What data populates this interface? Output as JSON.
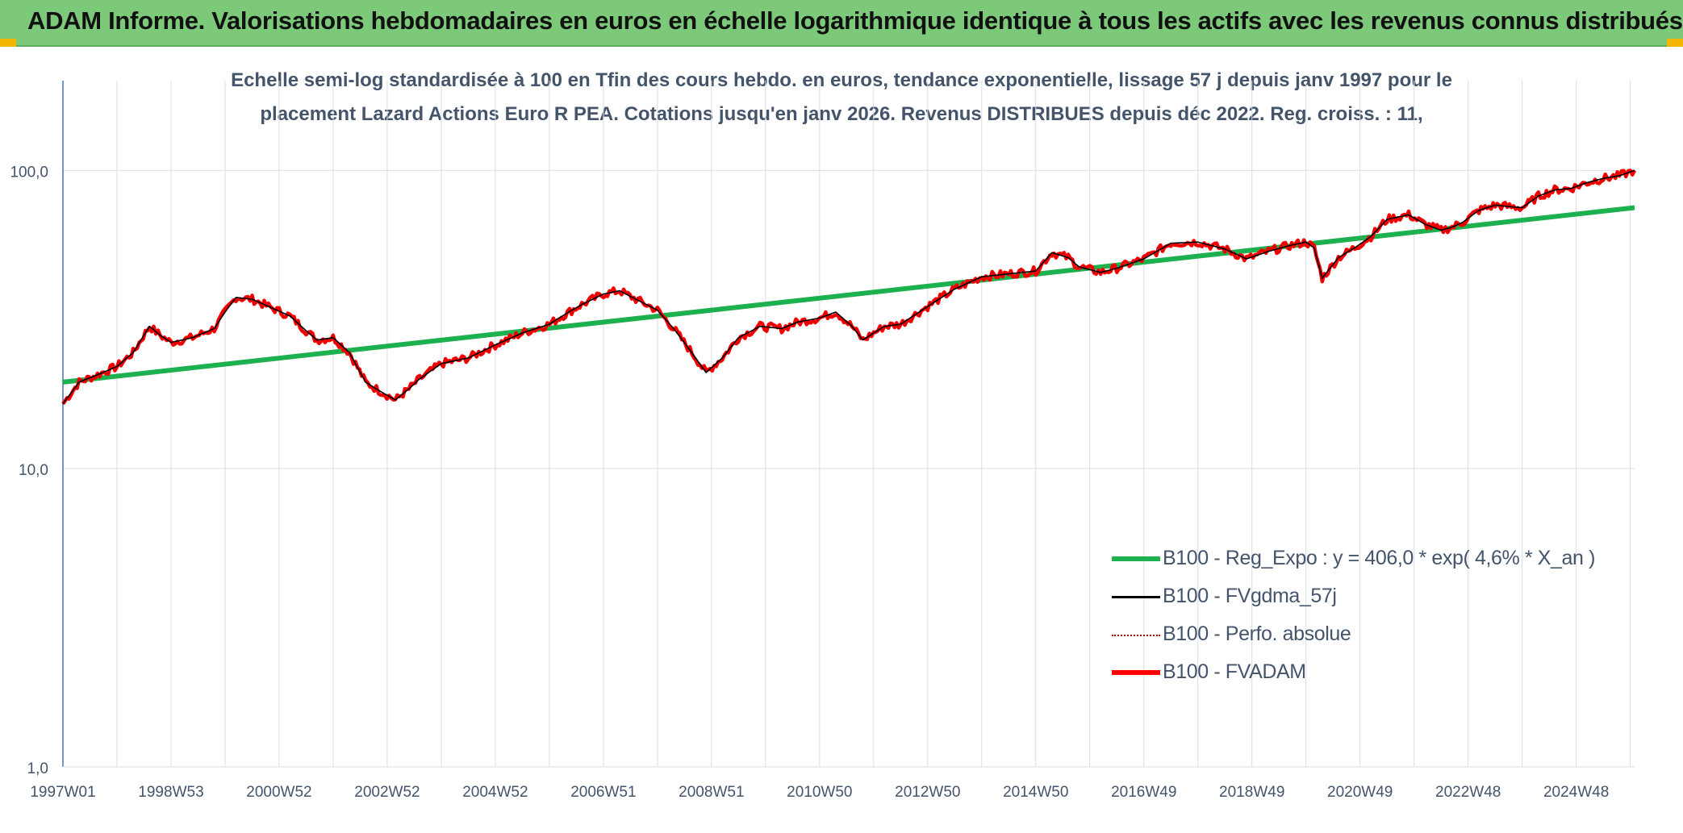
{
  "header": {
    "banner_title": "ADAM Informe. Valorisations hebdomadaires en euros en échelle logarithmique identique à tous les actifs avec les revenus connus distribués"
  },
  "colors": {
    "banner_bg": "#7dc97a",
    "regression": "#1db04f",
    "smoothed": "#000000",
    "perfo": "#c00000",
    "fvadam": "#ff0000",
    "axis_text": "#44546a"
  },
  "chart_data": {
    "type": "line",
    "subtitle_line1": "Echelle semi-log standardisée à 100 en Tfin des cours hebdo. en euros, tendance exponentielle, lissage 57 j depuis janv 1997 pour le",
    "subtitle_line2": "placement Lazard Actions Euro R PEA. Cotations jusqu'en janv 2026. Revenus DISTRIBUES depuis déc 2022. Reg. croiss. : 11,",
    "y_scale": "log",
    "ylim": [
      1,
      200
    ],
    "y_ticks": [
      {
        "value": 1,
        "label": "1,0"
      },
      {
        "value": 10,
        "label": "10,0"
      },
      {
        "value": 100,
        "label": "100,0"
      }
    ],
    "xlim": [
      1997.0,
      2026.08
    ],
    "x_ticks": [
      {
        "value": 1997.0,
        "label": "1997W01"
      },
      {
        "value": 1999.0,
        "label": "1998W53"
      },
      {
        "value": 2001.0,
        "label": "2000W52"
      },
      {
        "value": 2003.0,
        "label": "2002W52"
      },
      {
        "value": 2005.0,
        "label": "2004W52"
      },
      {
        "value": 2007.0,
        "label": "2006W51"
      },
      {
        "value": 2009.0,
        "label": "2008W51"
      },
      {
        "value": 2011.0,
        "label": "2010W50"
      },
      {
        "value": 2013.0,
        "label": "2012W50"
      },
      {
        "value": 2015.0,
        "label": "2014W50"
      },
      {
        "value": 2017.0,
        "label": "2016W49"
      },
      {
        "value": 2019.0,
        "label": "2018W49"
      },
      {
        "value": 2021.0,
        "label": "2020W49"
      },
      {
        "value": 2023.0,
        "label": "2022W48"
      },
      {
        "value": 2025.0,
        "label": "2024W48"
      }
    ],
    "grid": "vertical and horizontal",
    "legend_position": "lower-right",
    "series": [
      {
        "name": "B100 - Reg_Expo : y = 406,0 * exp( 4,6% *  X_an )",
        "role": "regression",
        "x": [
          1997.0,
          2026.08
        ],
        "y": [
          19.5,
          75.0
        ]
      },
      {
        "name": "B100 - FVgdma_57j",
        "role": "smoothed"
      },
      {
        "name": "B100 - Perfo. absolue",
        "role": "perfo"
      },
      {
        "name": "B100 - FVADAM",
        "role": "fvadam",
        "x": [
          1997.0,
          1997.3,
          1997.6,
          1998.0,
          1998.3,
          1998.6,
          1998.8,
          1999.0,
          1999.4,
          1999.8,
          2000.0,
          2000.2,
          2000.5,
          2000.8,
          2001.2,
          2001.5,
          2001.7,
          2002.0,
          2002.3,
          2002.6,
          2002.8,
          2003.15,
          2003.4,
          2003.6,
          2004.0,
          2004.5,
          2005.0,
          2005.5,
          2006.0,
          2006.3,
          2006.6,
          2007.0,
          2007.3,
          2007.6,
          2008.0,
          2008.3,
          2008.6,
          2008.9,
          2009.2,
          2009.5,
          2009.9,
          2010.3,
          2010.6,
          2011.0,
          2011.3,
          2011.6,
          2011.8,
          2012.0,
          2012.2,
          2012.5,
          2013.0,
          2013.5,
          2014.0,
          2014.5,
          2015.0,
          2015.3,
          2015.6,
          2015.8,
          2016.2,
          2016.5,
          2017.0,
          2017.5,
          2018.0,
          2018.5,
          2018.9,
          2019.3,
          2019.7,
          2020.0,
          2020.15,
          2020.3,
          2020.6,
          2020.9,
          2021.2,
          2021.5,
          2021.9,
          2022.2,
          2022.5,
          2022.7,
          2022.9,
          2023.2,
          2023.5,
          2023.8,
          2024.0,
          2024.3,
          2024.6,
          2024.9,
          2025.2,
          2025.5,
          2025.8,
          2026.08
        ],
        "y": [
          16.5,
          19.5,
          20.5,
          22.0,
          24.5,
          30.0,
          28.0,
          26.5,
          27.5,
          29.5,
          33.5,
          37.5,
          37.0,
          35.0,
          32.5,
          29.0,
          27.0,
          27.5,
          24.5,
          19.5,
          18.5,
          17.0,
          18.5,
          20.0,
          22.5,
          23.5,
          26.0,
          28.5,
          30.5,
          33.0,
          35.5,
          38.5,
          39.5,
          37.0,
          34.0,
          29.5,
          25.0,
          21.0,
          23.5,
          27.5,
          30.0,
          29.5,
          31.0,
          32.0,
          33.5,
          30.0,
          27.0,
          28.5,
          30.0,
          30.5,
          35.0,
          40.0,
          44.0,
          45.0,
          46.0,
          53.0,
          51.0,
          47.5,
          45.5,
          47.0,
          50.5,
          57.0,
          57.5,
          54.5,
          50.5,
          53.5,
          56.0,
          57.5,
          55.0,
          43.5,
          51.0,
          55.0,
          60.0,
          68.5,
          71.0,
          66.0,
          63.0,
          64.5,
          67.0,
          73.5,
          76.5,
          75.5,
          75.0,
          82.0,
          86.0,
          87.0,
          91.0,
          94.0,
          96.0,
          100.0
        ]
      }
    ]
  }
}
